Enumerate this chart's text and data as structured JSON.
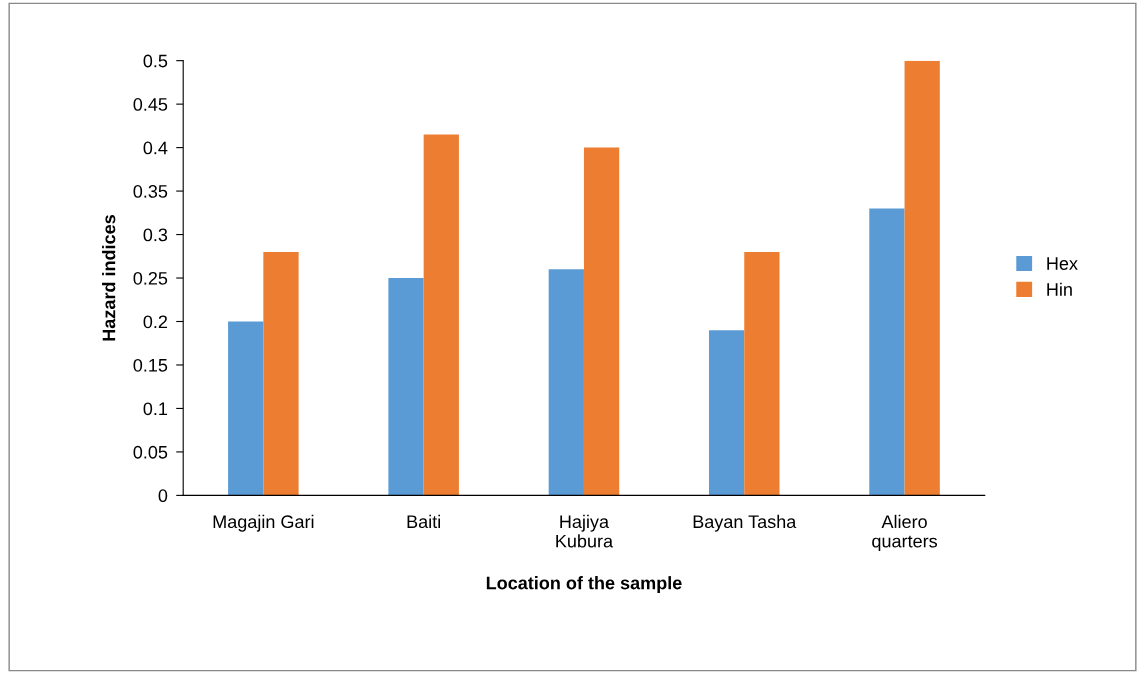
{
  "chart_data": {
    "type": "bar",
    "xlabel": "Location of the sample",
    "ylabel": "Hazard indices",
    "categories": [
      "Magajin Gari",
      "Baiti",
      "Hajiya\nKubura",
      "Bayan Tasha",
      "Aliero\nquarters"
    ],
    "series": [
      {
        "name": "Hex",
        "color": "#5b9bd5",
        "values": [
          0.2,
          0.25,
          0.26,
          0.19,
          0.33
        ]
      },
      {
        "name": "Hin",
        "color": "#ed7d31",
        "values": [
          0.28,
          0.415,
          0.4,
          0.28,
          0.5
        ]
      }
    ],
    "ylim": [
      0,
      0.5
    ],
    "yticks": [
      0,
      0.05,
      0.1,
      0.15,
      0.2,
      0.25,
      0.3,
      0.35,
      0.4,
      0.45,
      0.5
    ],
    "grid": false,
    "legend": "right"
  }
}
